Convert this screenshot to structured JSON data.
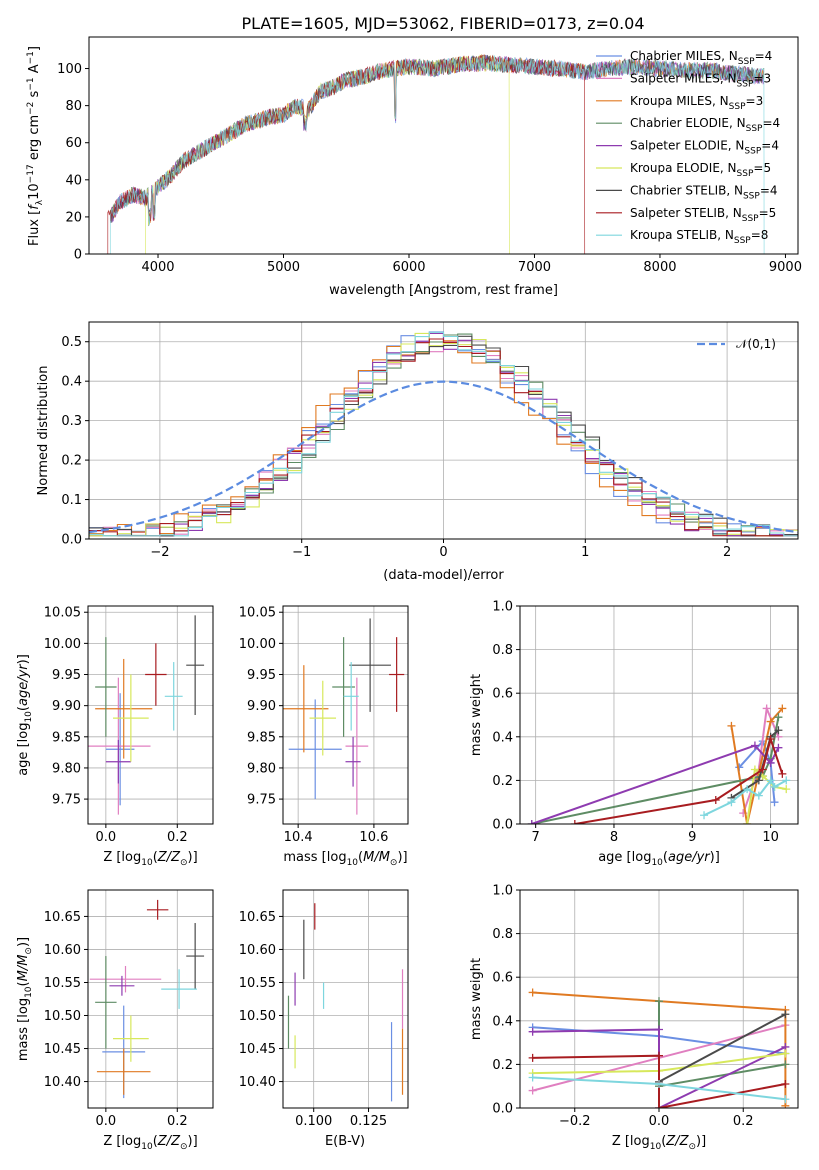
{
  "figure": {
    "title": "PLATE=1605, MJD=53062, FIBERID=0173, z=0.04"
  },
  "colors": {
    "Chabrier MILES": "#6b8fe3",
    "Salpeter MILES": "#e07fc0",
    "Kroupa MILES": "#e07a22",
    "Chabrier ELODIE": "#5e8c64",
    "Salpeter ELODIE": "#8e3bb0",
    "Kroupa ELODIE": "#d7e85c",
    "Chabrier STELIB": "#4a4a4a",
    "Salpeter STELIB": "#a81c20",
    "Kroupa STELIB": "#7ed6de",
    "normal_curve": "#5b8be0"
  },
  "chart_data": [
    {
      "type": "line",
      "panel": "spectrum",
      "title": "PLATE=1605, MJD=53062, FIBERID=0173, z=0.04",
      "xlabel": "wavelength [Angstrom, rest frame]",
      "ylabel": "Flux [f_λ10^-17 erg cm^-2 s^-1 A^-1]",
      "xlim": [
        3450,
        9100
      ],
      "ylim": [
        0,
        117
      ],
      "xticks": [
        "4000",
        "5000",
        "6000",
        "7000",
        "8000",
        "9000"
      ],
      "yticks": [
        "0",
        "20",
        "40",
        "60",
        "80",
        "100"
      ],
      "grid": false,
      "legend_position": "top-right",
      "legend": [
        {
          "model": "Chabrier MILES",
          "n_ssp": "4"
        },
        {
          "model": "Salpeter MILES",
          "n_ssp": "3"
        },
        {
          "model": "Kroupa MILES",
          "n_ssp": "3"
        },
        {
          "model": "Chabrier ELODIE",
          "n_ssp": "4"
        },
        {
          "model": "Salpeter ELODIE",
          "n_ssp": "4"
        },
        {
          "model": "Kroupa ELODIE",
          "n_ssp": "5"
        },
        {
          "model": "Chabrier STELIB",
          "n_ssp": "4"
        },
        {
          "model": "Salpeter STELIB",
          "n_ssp": "5"
        },
        {
          "model": "Kroupa STELIB",
          "n_ssp": "8"
        }
      ],
      "continuum": {
        "x": [
          3620,
          3700,
          3800,
          3900,
          4000,
          4100,
          4200,
          4300,
          4400,
          4500,
          4600,
          4700,
          4800,
          4900,
          5000,
          5100,
          5200,
          5300,
          5400,
          5500,
          5600,
          5700,
          5800,
          5900,
          6000,
          6200,
          6400,
          6600,
          6800,
          7000,
          7200,
          7400,
          7600,
          7800,
          8000,
          8200,
          8400,
          8600,
          8830
        ],
        "y": [
          20,
          28,
          32,
          30,
          36,
          42,
          50,
          54,
          58,
          62,
          66,
          70,
          72,
          74,
          75,
          80,
          78,
          88,
          90,
          94,
          95,
          97,
          99,
          100,
          101,
          100,
          102,
          103,
          102,
          101,
          100,
          98,
          100,
          101,
          100,
          99,
          99,
          97,
          96
        ]
      },
      "model_cutoffs": [
        {
          "model": "Kroupa ELODIE",
          "x_start": 3900,
          "x_end": 6800
        },
        {
          "model": "Salpeter STELIB",
          "x_start": 3600,
          "x_end": 7400
        },
        {
          "model": "Kroupa STELIB",
          "x_start": 3620,
          "x_end": 8830
        }
      ]
    },
    {
      "type": "histogram",
      "panel": "residuals",
      "xlabel": "(data-model)/error",
      "ylabel": "Normed distribution",
      "xlim": [
        -2.5,
        2.5
      ],
      "ylim": [
        0,
        0.55
      ],
      "xticks": [
        "-2",
        "-1",
        "0",
        "1",
        "2"
      ],
      "yticks": [
        "0.0",
        "0.1",
        "0.2",
        "0.3",
        "0.4",
        "0.5"
      ],
      "grid": true,
      "legend_position": "top-right",
      "legend": [
        "𝒩(0,1)"
      ],
      "bin_width": 0.1,
      "reference_curve": {
        "name": "𝒩(0,1)",
        "mean": 0,
        "sigma": 1
      },
      "series": [
        {
          "name": "Chabrier MILES",
          "shift": -0.05,
          "sigma": 0.78,
          "seed": 1
        },
        {
          "name": "Salpeter MILES",
          "shift": 0.0,
          "sigma": 0.8,
          "seed": 2
        },
        {
          "name": "Kroupa MILES",
          "shift": -0.08,
          "sigma": 0.8,
          "seed": 3
        },
        {
          "name": "Chabrier ELODIE",
          "shift": 0.05,
          "sigma": 0.8,
          "seed": 4
        },
        {
          "name": "Salpeter ELODIE",
          "shift": 0.02,
          "sigma": 0.79,
          "seed": 5
        },
        {
          "name": "Kroupa ELODIE",
          "shift": 0.04,
          "sigma": 0.78,
          "seed": 6
        },
        {
          "name": "Chabrier STELIB",
          "shift": 0.08,
          "sigma": 0.8,
          "seed": 7
        },
        {
          "name": "Salpeter STELIB",
          "shift": 0.0,
          "sigma": 0.8,
          "seed": 8
        },
        {
          "name": "Kroupa STELIB",
          "shift": 0.05,
          "sigma": 0.79,
          "seed": 9
        }
      ]
    },
    {
      "type": "scatter",
      "panel": "age_vs_Z",
      "xlabel": "Z [log10(Z/Z☉)]",
      "ylabel": "age  [log10(age/yr)]",
      "xlim": [
        -0.05,
        0.3
      ],
      "ylim": [
        9.71,
        10.06
      ],
      "xticks": [
        "0.0",
        "0.2"
      ],
      "yticks": [
        "9.75",
        "9.80",
        "9.85",
        "9.90",
        "9.95",
        "10.00",
        "10.05"
      ],
      "grid": true,
      "points": [
        {
          "series": "Chabrier MILES",
          "x": 0.04,
          "xerr": 0.04,
          "y": 9.83,
          "yerr": 0.09
        },
        {
          "series": "Salpeter MILES",
          "x": 0.035,
          "xerr": 0.09,
          "y": 9.835,
          "yerr": 0.11
        },
        {
          "series": "Kroupa MILES",
          "x": 0.05,
          "xerr": 0.08,
          "y": 9.895,
          "yerr": 0.08
        },
        {
          "series": "Chabrier ELODIE",
          "x": 0.0,
          "xerr": 0.03,
          "y": 9.93,
          "yerr": 0.08
        },
        {
          "series": "Salpeter ELODIE",
          "x": 0.035,
          "xerr": 0.035,
          "y": 9.81,
          "yerr": 0.035
        },
        {
          "series": "Kroupa ELODIE",
          "x": 0.07,
          "xerr": 0.05,
          "y": 9.88,
          "yerr": 0.07
        },
        {
          "series": "Chabrier STELIB",
          "x": 0.25,
          "xerr": 0.025,
          "y": 9.965,
          "yerr": 0.08
        },
        {
          "series": "Salpeter STELIB",
          "x": 0.14,
          "xerr": 0.03,
          "y": 9.95,
          "yerr": 0.05
        },
        {
          "series": "Kroupa STELIB",
          "x": 0.19,
          "xerr": 0.025,
          "y": 9.915,
          "yerr": 0.055
        }
      ]
    },
    {
      "type": "scatter",
      "panel": "age_vs_mass",
      "xlabel": "mass [log10(M/M☉)]",
      "ylabel": "",
      "xlim": [
        10.36,
        10.69
      ],
      "ylim": [
        9.71,
        10.06
      ],
      "xticks": [
        "10.4",
        "10.6"
      ],
      "yticks": [
        "9.75",
        "9.80",
        "9.85",
        "9.90",
        "9.95",
        "10.00",
        "10.05"
      ],
      "grid": true,
      "points": [
        {
          "series": "Chabrier MILES",
          "x": 10.445,
          "xerr": 0.07,
          "y": 9.83,
          "yerr": 0.08
        },
        {
          "series": "Salpeter MILES",
          "x": 10.555,
          "xerr": 0.03,
          "y": 9.835,
          "yerr": 0.11
        },
        {
          "series": "Kroupa MILES",
          "x": 10.415,
          "xerr": 0.065,
          "y": 9.895,
          "yerr": 0.07
        },
        {
          "series": "Chabrier ELODIE",
          "x": 10.52,
          "xerr": 0.03,
          "y": 9.93,
          "yerr": 0.08
        },
        {
          "series": "Salpeter ELODIE",
          "x": 10.545,
          "xerr": 0.02,
          "y": 9.81,
          "yerr": 0.04
        },
        {
          "series": "Kroupa ELODIE",
          "x": 10.465,
          "xerr": 0.035,
          "y": 9.88,
          "yerr": 0.06
        },
        {
          "series": "Chabrier STELIB",
          "x": 10.59,
          "xerr": 0.055,
          "y": 9.965,
          "yerr": 0.075
        },
        {
          "series": "Salpeter STELIB",
          "x": 10.66,
          "xerr": 0.02,
          "y": 9.95,
          "yerr": 0.06
        },
        {
          "series": "Kroupa STELIB",
          "x": 10.54,
          "xerr": 0.02,
          "y": 9.915,
          "yerr": 0.055
        }
      ]
    },
    {
      "type": "line",
      "panel": "mass_weight_vs_age",
      "xlabel": "age  [log10(age/yr)]",
      "ylabel": "mass weight",
      "xlim": [
        6.8,
        10.35
      ],
      "ylim": [
        0,
        1
      ],
      "xticks": [
        "7",
        "8",
        "9",
        "10"
      ],
      "yticks": [
        "0.0",
        "0.2",
        "0.4",
        "0.6",
        "0.8",
        "1.0"
      ],
      "grid": true,
      "series": [
        {
          "name": "Chabrier MILES",
          "x": [
            9.6,
            9.9,
            10.0,
            10.05
          ],
          "y": [
            0.26,
            0.38,
            0.28,
            0.1
          ]
        },
        {
          "name": "Salpeter MILES",
          "x": [
            9.65,
            9.85,
            9.95,
            10.1
          ],
          "y": [
            0.05,
            0.25,
            0.53,
            0.4
          ]
        },
        {
          "name": "Kroupa MILES",
          "x": [
            9.5,
            9.7,
            10.0,
            10.15
          ],
          "y": [
            0.45,
            0.0,
            0.47,
            0.53
          ]
        },
        {
          "name": "Chabrier ELODIE",
          "x": [
            6.95,
            9.9,
            10.0,
            10.1
          ],
          "y": [
            0.0,
            0.22,
            0.3,
            0.49
          ]
        },
        {
          "name": "Salpeter ELODIE",
          "x": [
            6.95,
            9.8,
            10.0,
            10.1
          ],
          "y": [
            0.0,
            0.36,
            0.28,
            0.35
          ]
        },
        {
          "name": "Kroupa ELODIE",
          "x": [
            9.7,
            9.8,
            9.9,
            10.05,
            10.2
          ],
          "y": [
            0.0,
            0.25,
            0.22,
            0.17,
            0.16
          ]
        },
        {
          "name": "Chabrier STELIB",
          "x": [
            9.5,
            9.85,
            10.0,
            10.1
          ],
          "y": [
            0.12,
            0.2,
            0.4,
            0.43
          ]
        },
        {
          "name": "Salpeter STELIB",
          "x": [
            7.5,
            9.3,
            9.9,
            10.0,
            10.15
          ],
          "y": [
            0.0,
            0.11,
            0.25,
            0.39,
            0.23
          ]
        },
        {
          "name": "Kroupa STELIB",
          "x": [
            9.15,
            9.5,
            9.7,
            9.85,
            10.0,
            10.05,
            10.2
          ],
          "y": [
            0.04,
            0.1,
            0.16,
            0.13,
            0.2,
            0.17,
            0.2
          ]
        }
      ]
    },
    {
      "type": "scatter",
      "panel": "mass_vs_Z",
      "xlabel": "Z [log10(Z/Z☉)]",
      "ylabel": "mass [log10(M/M☉)]",
      "xlim": [
        -0.05,
        0.3
      ],
      "ylim": [
        10.36,
        10.69
      ],
      "xticks": [
        "0.0",
        "0.2"
      ],
      "yticks": [
        "10.40",
        "10.45",
        "10.50",
        "10.55",
        "10.60",
        "10.65"
      ],
      "grid": true,
      "points": [
        {
          "series": "Chabrier MILES",
          "x": 0.05,
          "xerr": 0.06,
          "y": 10.445,
          "yerr": 0.07
        },
        {
          "series": "Salpeter MILES",
          "x": 0.055,
          "xerr": 0.1,
          "y": 10.555,
          "yerr": 0.02
        },
        {
          "series": "Kroupa MILES",
          "x": 0.05,
          "xerr": 0.075,
          "y": 10.415,
          "yerr": 0.035
        },
        {
          "series": "Chabrier ELODIE",
          "x": 0.0,
          "xerr": 0.03,
          "y": 10.52,
          "yerr": 0.07
        },
        {
          "series": "Salpeter ELODIE",
          "x": 0.045,
          "xerr": 0.035,
          "y": 10.545,
          "yerr": 0.015
        },
        {
          "series": "Kroupa ELODIE",
          "x": 0.07,
          "xerr": 0.05,
          "y": 10.465,
          "yerr": 0.035
        },
        {
          "series": "Chabrier STELIB",
          "x": 0.25,
          "xerr": 0.025,
          "y": 10.59,
          "yerr": 0.05
        },
        {
          "series": "Salpeter STELIB",
          "x": 0.145,
          "xerr": 0.03,
          "y": 10.66,
          "yerr": 0.015
        },
        {
          "series": "Kroupa STELIB",
          "x": 0.205,
          "xerr": 0.05,
          "y": 10.54,
          "yerr": 0.03
        }
      ]
    },
    {
      "type": "scatter",
      "panel": "mass_vs_ebv",
      "xlabel": "E(B-V)",
      "ylabel": "",
      "xlim": [
        0.086,
        0.143
      ],
      "ylim": [
        10.36,
        10.69
      ],
      "xticks": [
        "0.100",
        "0.125"
      ],
      "yticks": [
        "10.40",
        "10.45",
        "10.50",
        "10.55",
        "10.60",
        "10.65"
      ],
      "grid": true,
      "points": [
        {
          "series": "Chabrier MILES",
          "x": 0.1355,
          "y": 10.43,
          "yerr": 0.06
        },
        {
          "series": "Salpeter MILES",
          "x": 0.1405,
          "y": 10.525,
          "yerr": 0.045
        },
        {
          "series": "Kroupa MILES",
          "x": 0.1405,
          "y": 10.43,
          "yerr": 0.05
        },
        {
          "series": "Chabrier ELODIE",
          "x": 0.0885,
          "y": 10.49,
          "yerr": 0.04
        },
        {
          "series": "Salpeter ELODIE",
          "x": 0.0915,
          "y": 10.54,
          "yerr": 0.025
        },
        {
          "series": "Kroupa ELODIE",
          "x": 0.0915,
          "y": 10.445,
          "yerr": 0.025
        },
        {
          "series": "Chabrier STELIB",
          "x": 0.0955,
          "y": 10.6,
          "yerr": 0.045
        },
        {
          "series": "Salpeter STELIB",
          "x": 0.1005,
          "y": 10.65,
          "yerr": 0.02
        },
        {
          "series": "Kroupa STELIB",
          "x": 0.1045,
          "y": 10.53,
          "yerr": 0.02
        }
      ]
    },
    {
      "type": "line",
      "panel": "mass_weight_vs_Z",
      "xlabel": "Z [log10(Z/Z☉)]",
      "ylabel": "mass weight",
      "xlim": [
        -0.33,
        0.33
      ],
      "ylim": [
        0,
        1
      ],
      "xticks": [
        "-0.2",
        "0.0",
        "0.2"
      ],
      "yticks": [
        "0.0",
        "0.2",
        "0.4",
        "0.6",
        "0.8",
        "1.0"
      ],
      "grid": true,
      "series": [
        {
          "name": "Chabrier MILES",
          "x": [
            -0.3,
            0.0,
            0.3
          ],
          "y": [
            0.37,
            0.33,
            0.25
          ]
        },
        {
          "name": "Salpeter MILES",
          "x": [
            -0.3,
            0.3
          ],
          "y": [
            0.08,
            0.38
          ]
        },
        {
          "name": "Kroupa MILES",
          "x": [
            -0.3,
            0.3,
            0.3
          ],
          "y": [
            0.53,
            0.45,
            0.01
          ]
        },
        {
          "name": "Chabrier ELODIE",
          "x": [
            0.0,
            0.0,
            0.3
          ],
          "y": [
            0.49,
            0.1,
            0.2
          ]
        },
        {
          "name": "Salpeter ELODIE",
          "x": [
            -0.3,
            0.0,
            0.0,
            0.3
          ],
          "y": [
            0.35,
            0.36,
            0.0,
            0.28
          ]
        },
        {
          "name": "Kroupa ELODIE",
          "x": [
            -0.3,
            0.0,
            0.3
          ],
          "y": [
            0.16,
            0.17,
            0.25
          ]
        },
        {
          "name": "Chabrier STELIB",
          "x": [
            0.0,
            0.3
          ],
          "y": [
            0.12,
            0.43
          ]
        },
        {
          "name": "Salpeter STELIB",
          "x": [
            -0.3,
            0.0,
            0.0,
            0.3
          ],
          "y": [
            0.23,
            0.24,
            0.0,
            0.11
          ]
        },
        {
          "name": "Kroupa STELIB",
          "x": [
            -0.3,
            0.0,
            0.3
          ],
          "y": [
            0.14,
            0.11,
            0.04
          ]
        }
      ]
    }
  ]
}
